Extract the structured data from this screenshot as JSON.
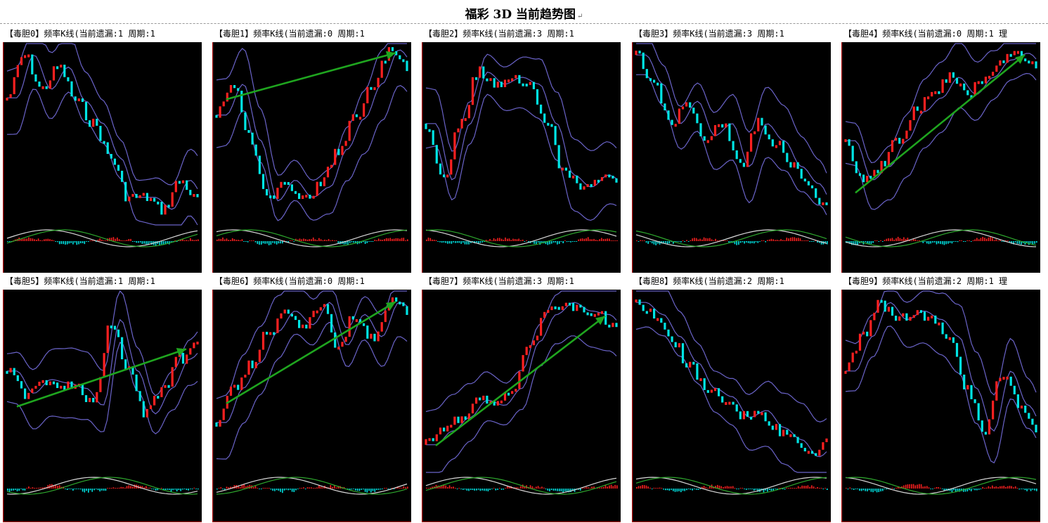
{
  "document": {
    "title": "福彩 3D 当前趋势图",
    "return_mark": "↵"
  },
  "colors": {
    "background": "#000000",
    "up_candle": "#ff2020",
    "down_candle": "#00e5e5",
    "band": "#6a63c8",
    "trend_arrow": "#1fa51f",
    "axis": "#b01010",
    "macd_fast": "#d9d9d9",
    "macd_slow": "#2ea82e"
  },
  "chart_data": [
    {
      "type": "candlestick",
      "title": "【毒胆0】频率K线(当前遗漏:1 周期:1",
      "trend_arrow": false
    },
    {
      "type": "candlestick",
      "title": "【毒胆1】频率K线(当前遗漏:0 周期:1",
      "trend_arrow": true
    },
    {
      "type": "candlestick",
      "title": "【毒胆2】频率K线(当前遗漏:3 周期:1",
      "trend_arrow": false
    },
    {
      "type": "candlestick",
      "title": "【毒胆3】频率K线(当前遗漏:3 周期:1",
      "trend_arrow": false
    },
    {
      "type": "candlestick",
      "title": "【毒胆4】频率K线(当前遗漏:0 周期:1 理",
      "trend_arrow": true
    },
    {
      "type": "candlestick",
      "title": "【毒胆5】频率K线(当前遗漏:1 周期:1",
      "trend_arrow": true
    },
    {
      "type": "candlestick",
      "title": "【毒胆6】频率K线(当前遗漏:0 周期:1",
      "trend_arrow": true
    },
    {
      "type": "candlestick",
      "title": "【毒胆7】频率K线(当前遗漏:3 周期:1",
      "trend_arrow": true
    },
    {
      "type": "candlestick",
      "title": "【毒胆8】频率K线(当前遗漏:2 周期:1",
      "trend_arrow": false
    },
    {
      "type": "candlestick",
      "title": "【毒胆9】频率K线(当前遗漏:2 周期:1 理",
      "trend_arrow": false
    }
  ]
}
